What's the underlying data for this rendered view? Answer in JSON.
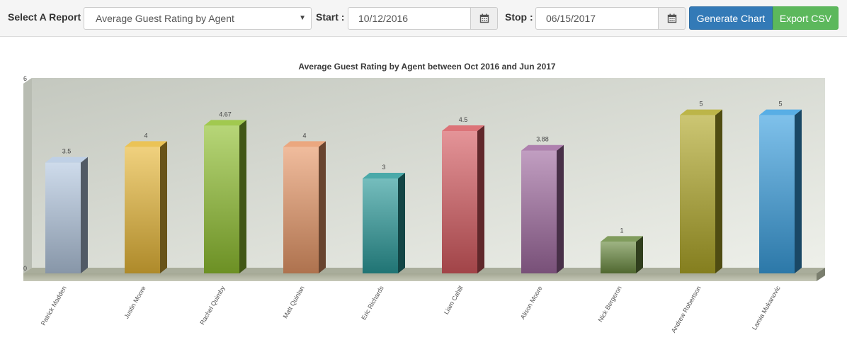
{
  "toolbar": {
    "report_label": "Select A Report",
    "report_value": "Average Guest Rating by Agent",
    "start_label": "Start",
    "start_value": "10/12/2016",
    "stop_label": "Stop",
    "stop_value": "06/15/2017",
    "generate_label": "Generate Chart",
    "export_label": "Export CSV",
    "colon": ":",
    "icons": {
      "dropdown": "caret-down-icon",
      "calendar": "calendar-icon"
    },
    "colors": {
      "generate": "#337ab7",
      "export": "#5cb85c"
    }
  },
  "chart_data": {
    "type": "bar",
    "title": "Average Guest Rating by Agent between Oct 2016 and Jun 2017",
    "categories": [
      "Patrick Madden",
      "Justin Moore",
      "Rachel Quimby",
      "Matt Quinlan",
      "Eric Richards",
      "Liam Cahill",
      "Alison Moore",
      "Nick Bergeron",
      "Andrew Robertson",
      "Lamia Mukanovic"
    ],
    "values": [
      3.5,
      4,
      4.67,
      4,
      3,
      4.5,
      3.88,
      1,
      5,
      5
    ],
    "value_labels": [
      "3.5",
      "4",
      "4.67",
      "4",
      "3",
      "4.5",
      "3.88",
      "1",
      "5",
      "5"
    ],
    "colors": [
      "#b4c8e0",
      "#e8b838",
      "#90c030",
      "#e89868",
      "#2a9a9a",
      "#d65a60",
      "#a06aa0",
      "#6a8a40",
      "#b0a828",
      "#3aa0e0"
    ],
    "ylim": [
      0,
      6
    ],
    "ytick_labels": [
      "0",
      "6"
    ],
    "xlabel": "",
    "ylabel": "",
    "grid": false,
    "style": "3d"
  }
}
